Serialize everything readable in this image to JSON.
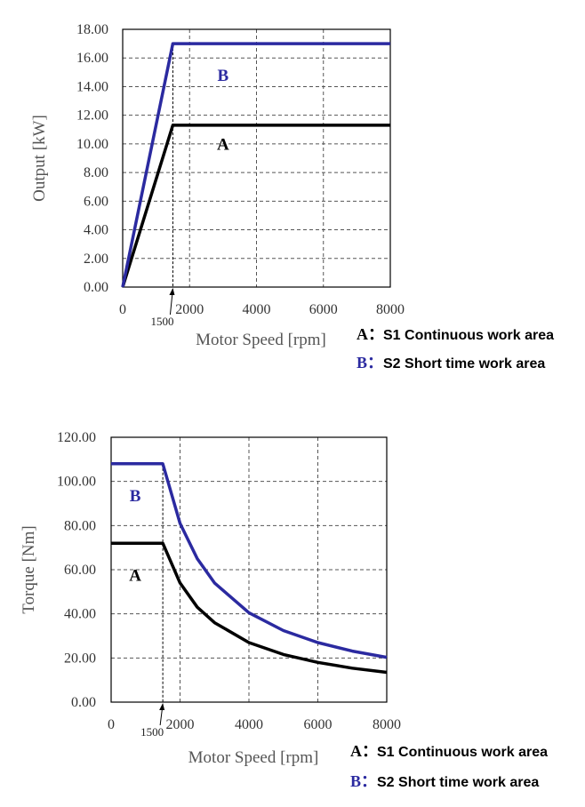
{
  "colors": {
    "A": "#000000",
    "B": "#2b2aa0",
    "grid": "#555555"
  },
  "chart_data": [
    {
      "type": "line",
      "title": "",
      "xlabel": "Motor Speed [rpm]",
      "ylabel": "Output [kW]",
      "xlim": [
        0,
        8000
      ],
      "ylim": [
        0,
        18
      ],
      "x_ticks": [
        0,
        2000,
        4000,
        6000,
        8000
      ],
      "x_tick_labels": [
        "0",
        "2000",
        "4000",
        "6000",
        "8000"
      ],
      "y_ticks": [
        0,
        2,
        4,
        6,
        8,
        10,
        12,
        14,
        16,
        18
      ],
      "y_tick_labels": [
        "0.00",
        "2.00",
        "4.00",
        "6.00",
        "8.00",
        "10.00",
        "12.00",
        "14.00",
        "16.00",
        "18.00"
      ],
      "grid": true,
      "base_speed_label": "1500",
      "series": [
        {
          "name": "A",
          "x": [
            0,
            1500,
            8000
          ],
          "y": [
            0,
            11.3,
            11.3
          ]
        },
        {
          "name": "B",
          "x": [
            0,
            1500,
            8000
          ],
          "y": [
            0,
            17.0,
            17.0
          ]
        }
      ],
      "region_labels": [
        {
          "text": "B",
          "x": 3000,
          "y": 14.4
        },
        {
          "text": "A",
          "x": 3000,
          "y": 9.6
        }
      ],
      "legend": [
        {
          "key": "A：",
          "label": "S1 Continuous work area"
        },
        {
          "key": "B：",
          "label": "S2 Short time work area"
        }
      ]
    },
    {
      "type": "line",
      "title": "",
      "xlabel": "Motor Speed [rpm]",
      "ylabel": "Torque [Nm]",
      "xlim": [
        0,
        8000
      ],
      "ylim": [
        0,
        120
      ],
      "x_ticks": [
        0,
        2000,
        4000,
        6000,
        8000
      ],
      "x_tick_labels": [
        "0",
        "2000",
        "4000",
        "6000",
        "8000"
      ],
      "y_ticks": [
        0,
        20,
        40,
        60,
        80,
        100,
        120
      ],
      "y_tick_labels": [
        "0.00",
        "20.00",
        "40.00",
        "60.00",
        "80.00",
        "100.00",
        "120.00"
      ],
      "grid": true,
      "base_speed_label": "1500",
      "series": [
        {
          "name": "A",
          "x": [
            0,
            1500,
            2000,
            2500,
            3000,
            4000,
            5000,
            6000,
            7000,
            8000
          ],
          "y": [
            72,
            72,
            54,
            43,
            36,
            27,
            21.6,
            18,
            15.4,
            13.5
          ]
        },
        {
          "name": "B",
          "x": [
            0,
            1500,
            2000,
            2500,
            3000,
            4000,
            5000,
            6000,
            7000,
            8000
          ],
          "y": [
            108,
            108,
            81,
            65,
            54,
            40.5,
            32.4,
            27,
            23.1,
            20.3
          ]
        }
      ],
      "region_labels": [
        {
          "text": "B",
          "x": 700,
          "y": 91
        },
        {
          "text": "A",
          "x": 700,
          "y": 55
        }
      ],
      "legend": [
        {
          "key": "A：",
          "label": "S1 Continuous work area"
        },
        {
          "key": "B：",
          "label": "S2 Short time work area"
        }
      ]
    }
  ]
}
